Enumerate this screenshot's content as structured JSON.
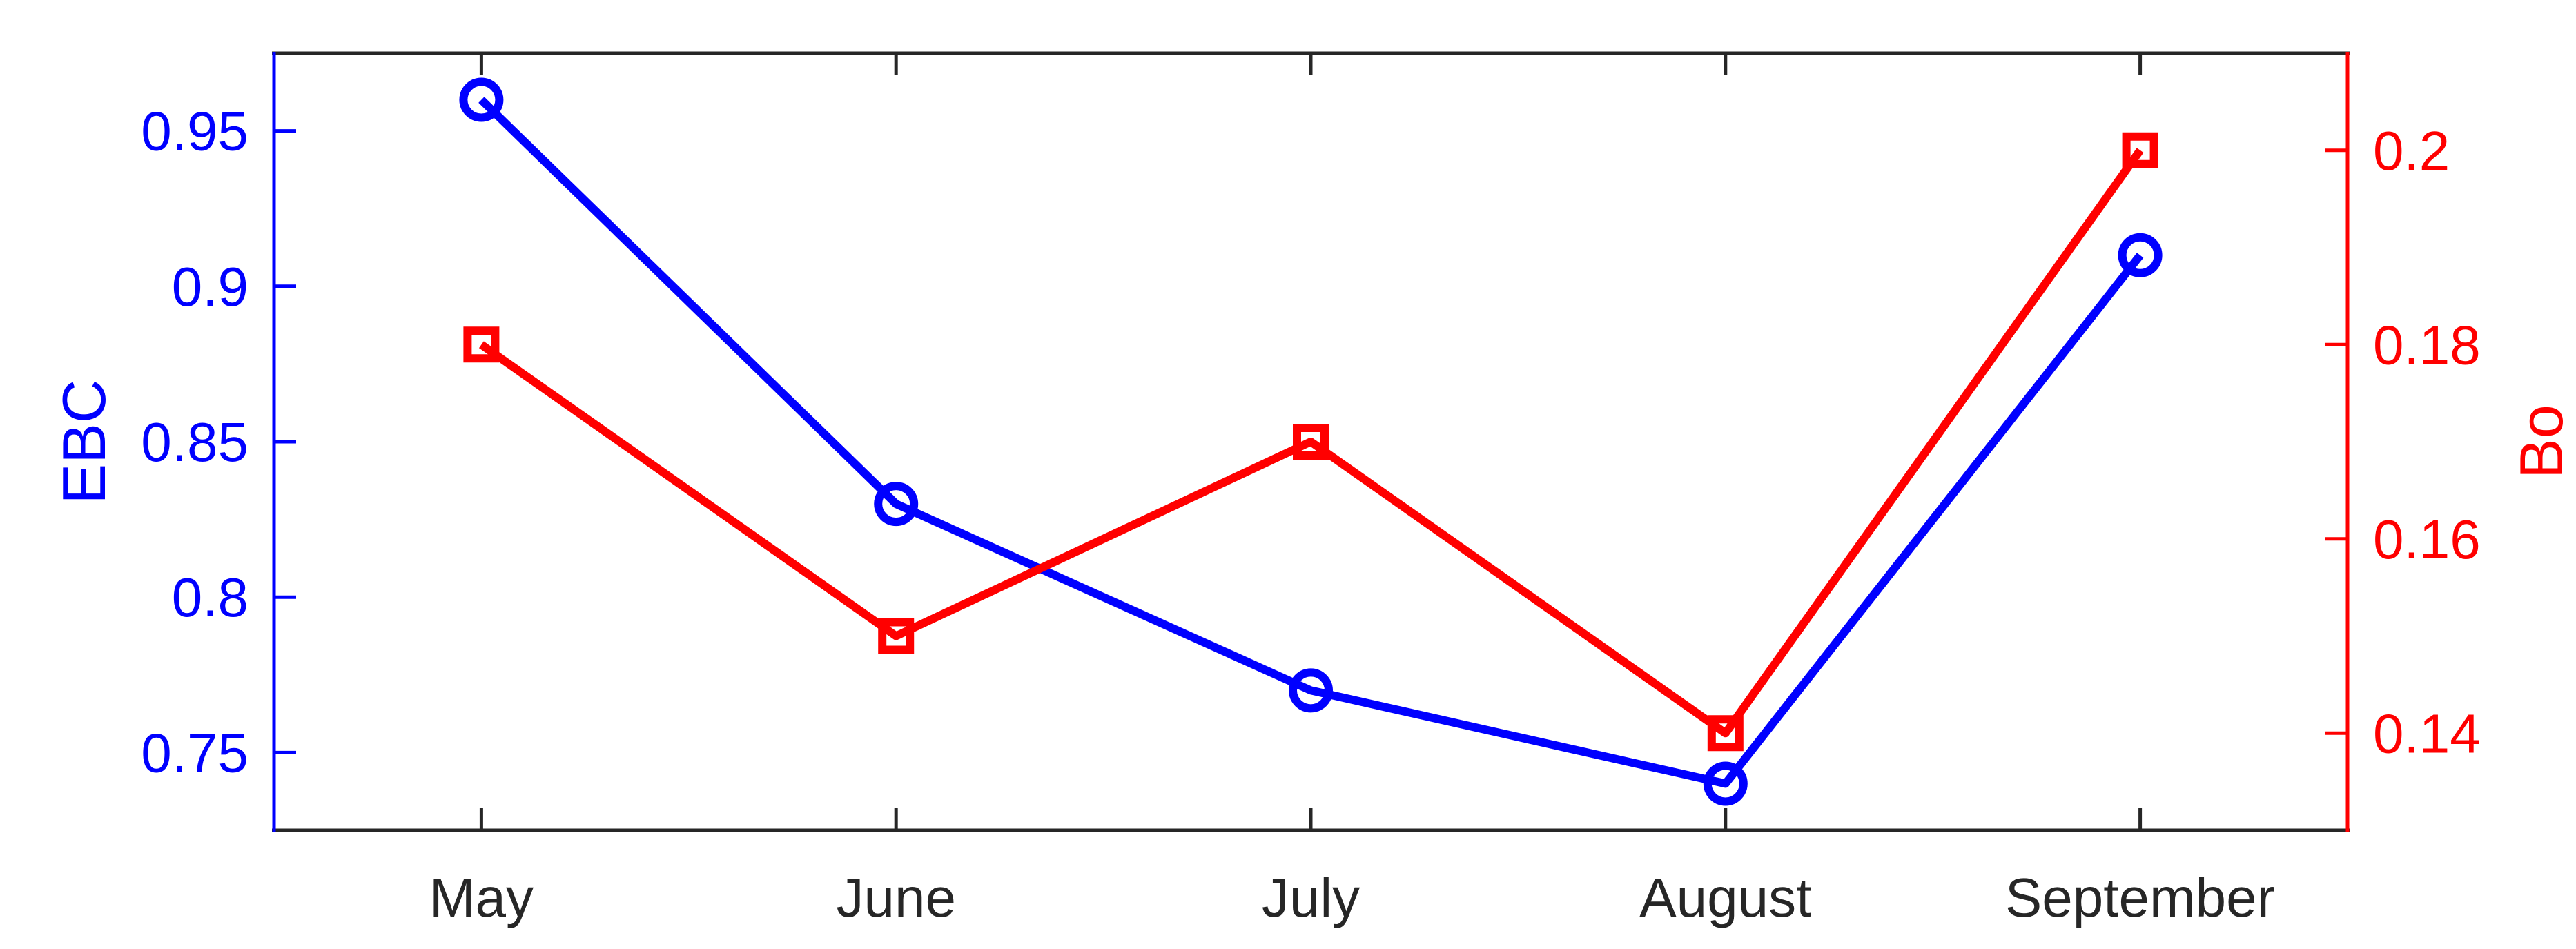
{
  "chart_data": {
    "type": "line",
    "categories": [
      "May",
      "June",
      "July",
      "August",
      "September"
    ],
    "series": [
      {
        "name": "EBC",
        "axis": "left",
        "color": "#0000ff",
        "marker": "circle",
        "values": [
          0.96,
          0.83,
          0.77,
          0.74,
          0.91
        ]
      },
      {
        "name": "Bo",
        "axis": "right",
        "color": "#ff0000",
        "marker": "square",
        "values": [
          0.18,
          0.15,
          0.17,
          0.14,
          0.2
        ]
      }
    ],
    "left_axis": {
      "label": "EBC",
      "color": "#0000ff",
      "ylim": [
        0.725,
        0.975
      ],
      "ticks": [
        0.75,
        0.8,
        0.85,
        0.9,
        0.95
      ],
      "tick_labels": [
        "0.75",
        "0.8",
        "0.85",
        "0.9",
        "0.95"
      ]
    },
    "right_axis": {
      "label": "Bo",
      "color": "#ff0000",
      "ylim": [
        0.13,
        0.21
      ],
      "ticks": [
        0.14,
        0.16,
        0.18,
        0.2
      ],
      "tick_labels": [
        "0.14",
        "0.16",
        "0.18",
        "0.2"
      ]
    },
    "x_axis": {
      "color": "#262626",
      "tick_labels": [
        "May",
        "June",
        "July",
        "August",
        "September"
      ]
    },
    "grid": false,
    "legend": null,
    "title": ""
  }
}
